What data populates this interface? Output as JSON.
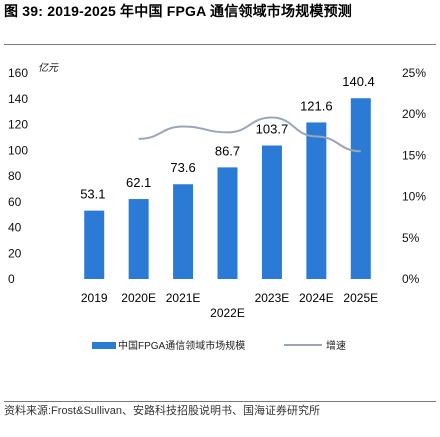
{
  "figure": {
    "title": "图 39:  2019-2025 年中国 FPGA 通信领域市场规模预测",
    "source": "资料来源:Frost&Sullivan、安路科技招股说明书、国海证券研究所"
  },
  "chart_data": {
    "type": "bar",
    "categories": [
      "2019",
      "2020E",
      "2021E",
      "2022E",
      "2023E",
      "2024E",
      "2025E"
    ],
    "series": [
      {
        "name": "中国FPGA通信领域市场规模",
        "type": "bar",
        "axis": "left",
        "values": [
          53.1,
          62.1,
          73.6,
          86.7,
          103.7,
          121.6,
          140.4
        ],
        "labels": [
          "53.1",
          "62.1",
          "73.6",
          "86.7",
          "103.7",
          "121.6",
          "140.4"
        ],
        "color": "#2b7bd6"
      },
      {
        "name": "增速",
        "type": "line",
        "axis": "right",
        "values": [
          null,
          17.0,
          18.5,
          17.8,
          19.6,
          17.3,
          15.5
        ],
        "color": "#9aa6b6"
      }
    ],
    "y_left": {
      "unit": "亿元",
      "min": 0,
      "max": 160,
      "ticks": [
        "0",
        "20",
        "40",
        "60",
        "80",
        "100",
        "120",
        "140",
        "160"
      ]
    },
    "y_right": {
      "min": 0,
      "max": 25,
      "ticks": [
        "0%",
        "5%",
        "10%",
        "15%",
        "20%",
        "25%"
      ]
    },
    "grid": false,
    "legend_position": "bottom"
  }
}
